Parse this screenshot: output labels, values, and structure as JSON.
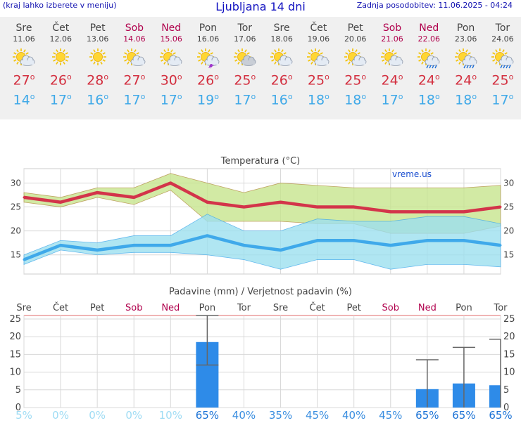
{
  "header": {
    "hint": "(kraj lahko izberete v meniju)",
    "title": "Ljubljana 14 dni",
    "updated": "Zadnja posodobitev: 11.06.2025 - 04:24"
  },
  "days": [
    {
      "name": "Sre",
      "date": "11.06",
      "weekend": false,
      "icon": "sun-cloud-icon",
      "tmax": "27",
      "tmin": "14"
    },
    {
      "name": "Čet",
      "date": "12.06",
      "weekend": false,
      "icon": "sun-icon",
      "tmax": "26",
      "tmin": "17"
    },
    {
      "name": "Pet",
      "date": "13.06",
      "weekend": false,
      "icon": "sun-icon",
      "tmax": "28",
      "tmin": "16"
    },
    {
      "name": "Sob",
      "date": "14.06",
      "weekend": true,
      "icon": "sun-cloud-icon",
      "tmax": "27",
      "tmin": "17"
    },
    {
      "name": "Ned",
      "date": "15.06",
      "weekend": true,
      "icon": "sun-cloud-icon",
      "tmax": "30",
      "tmin": "17"
    },
    {
      "name": "Pon",
      "date": "16.06",
      "weekend": false,
      "icon": "sun-storm-icon",
      "tmax": "26",
      "tmin": "19"
    },
    {
      "name": "Tor",
      "date": "17.06",
      "weekend": false,
      "icon": "cloudy-sun-icon",
      "tmax": "25",
      "tmin": "17"
    },
    {
      "name": "Sre",
      "date": "18.06",
      "weekend": false,
      "icon": "sun-cloud-icon",
      "tmax": "26",
      "tmin": "16"
    },
    {
      "name": "Čet",
      "date": "19.06",
      "weekend": false,
      "icon": "sun-cloud-icon",
      "tmax": "25",
      "tmin": "18"
    },
    {
      "name": "Pet",
      "date": "20.06",
      "weekend": false,
      "icon": "sun-cloud-icon",
      "tmax": "25",
      "tmin": "18"
    },
    {
      "name": "Sob",
      "date": "21.06",
      "weekend": true,
      "icon": "sun-cloud-icon",
      "tmax": "24",
      "tmin": "17"
    },
    {
      "name": "Ned",
      "date": "22.06",
      "weekend": true,
      "icon": "sun-rain-icon",
      "tmax": "24",
      "tmin": "18"
    },
    {
      "name": "Pon",
      "date": "23.06",
      "weekend": false,
      "icon": "sun-rain-icon",
      "tmax": "24",
      "tmin": "18"
    },
    {
      "name": "Tor",
      "date": "24.06",
      "weekend": false,
      "icon": "sun-rain-icon",
      "tmax": "25",
      "tmin": "17"
    }
  ],
  "chart_data": [
    {
      "type": "line",
      "title": "Temperatura (°C)",
      "watermark": "vreme.us",
      "x": [
        "11.06",
        "12.06",
        "13.06",
        "14.06",
        "15.06",
        "16.06",
        "17.06",
        "18.06",
        "19.06",
        "20.06",
        "21.06",
        "22.06",
        "23.06",
        "24.06"
      ],
      "ylim": [
        11,
        33
      ],
      "yticks": [
        15,
        20,
        25,
        30
      ],
      "grid": true,
      "series": [
        {
          "role": "max",
          "color": "#d3344a",
          "values": [
            27,
            26,
            28,
            27,
            30,
            26,
            25,
            26,
            25,
            25,
            24,
            24,
            24,
            25
          ],
          "band_upper": [
            28,
            27,
            29,
            29,
            32,
            30,
            28,
            30,
            29.5,
            29,
            29,
            29,
            29,
            29.5
          ],
          "band_lower": [
            26,
            25,
            27,
            25.5,
            28.5,
            22,
            22,
            22,
            21.5,
            21.5,
            19.5,
            19.5,
            19.5,
            21
          ],
          "band_color": "#c7e58e"
        },
        {
          "role": "min",
          "color": "#3fa9ea",
          "values": [
            14,
            17,
            16,
            17,
            17,
            19,
            17,
            16,
            18,
            18,
            17,
            18,
            18,
            17
          ],
          "band_upper": [
            15,
            18,
            17.5,
            19,
            19,
            23.5,
            20,
            20,
            22.5,
            22,
            22,
            23,
            23,
            21.5
          ],
          "band_lower": [
            13,
            16,
            15,
            15.5,
            15.5,
            15,
            14,
            12,
            14,
            14,
            12,
            13,
            13,
            12.5
          ],
          "band_color": "#9de0ef"
        }
      ]
    },
    {
      "type": "bar",
      "title": "Padavine (mm) / Verjetnost padavin (%)",
      "categories": [
        "Sre",
        "Čet",
        "Pet",
        "Sob",
        "Ned",
        "Pon",
        "Tor",
        "Sre",
        "Čet",
        "Pet",
        "Sob",
        "Ned",
        "Pon",
        "Tor"
      ],
      "weekend": [
        false,
        false,
        false,
        true,
        true,
        false,
        false,
        false,
        false,
        false,
        true,
        true,
        false,
        false
      ],
      "ylim": [
        0,
        26
      ],
      "yticks": [
        0,
        5,
        10,
        15,
        20,
        25
      ],
      "values": [
        0,
        0,
        0,
        0,
        0,
        18.5,
        0,
        0,
        0,
        0,
        0,
        5.2,
        6.8,
        6.3
      ],
      "err_high": [
        null,
        null,
        null,
        null,
        null,
        26,
        null,
        null,
        null,
        null,
        null,
        13.5,
        17,
        19.3
      ],
      "err_low": [
        null,
        null,
        null,
        null,
        null,
        12,
        null,
        null,
        null,
        null,
        null,
        null,
        null,
        null
      ],
      "probability": [
        "5%",
        "0%",
        "0%",
        "0%",
        "10%",
        "65%",
        "40%",
        "35%",
        "45%",
        "40%",
        "45%",
        "65%",
        "65%",
        "65%"
      ],
      "bar_color": "#2e8be8"
    }
  ]
}
